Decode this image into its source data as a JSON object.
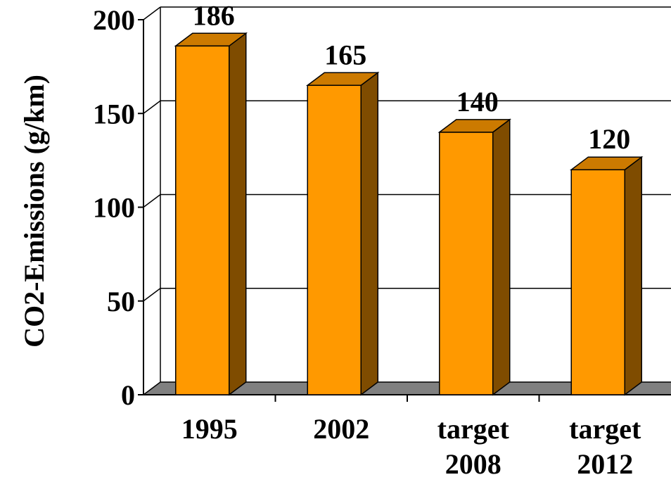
{
  "chart_data": {
    "type": "bar",
    "style": "3d",
    "categories": [
      [
        "1995"
      ],
      [
        "2002"
      ],
      [
        "target",
        "2008"
      ],
      [
        "target",
        "2012"
      ]
    ],
    "values": [
      186,
      165,
      140,
      120
    ],
    "data_labels": [
      "186",
      "165",
      "140",
      "120"
    ],
    "ylabel": "CO2-Emissions (g/km)",
    "xlabel": "",
    "title": "",
    "ylim": [
      0,
      200
    ],
    "yticks": [
      0,
      50,
      100,
      150,
      200
    ],
    "grid": true,
    "legend": "none",
    "colors": {
      "bar_front": "#FF9900",
      "bar_side": "#7F4C00",
      "bar_top": "#CC7A00",
      "floor": "#808080",
      "gridline": "#000000"
    }
  }
}
